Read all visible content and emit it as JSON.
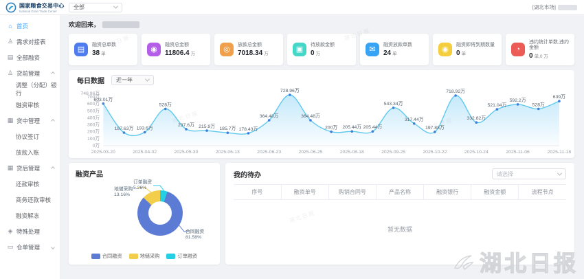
{
  "header": {
    "brand": {
      "title": "国家粮食交易中心",
      "subtitle": "National Grain Trade Center"
    },
    "market_select": "全部",
    "user_market": "[湖北市场]"
  },
  "sidebar": {
    "items": [
      {
        "label": "首页",
        "icon": "home-icon",
        "level": 0,
        "active": true
      },
      {
        "label": "需求对接表",
        "icon": "user-icon",
        "level": 0
      },
      {
        "label": "全部融资",
        "icon": "document-icon",
        "level": 0
      },
      {
        "label": "贷前管理",
        "icon": "user-icon",
        "level": 0,
        "caret": "up"
      },
      {
        "label": "调整（分配）银行",
        "level": 1
      },
      {
        "label": "融资审核",
        "level": 1
      },
      {
        "label": "贷中管理",
        "icon": "bank-icon",
        "level": 0,
        "caret": "up"
      },
      {
        "label": "协议签订",
        "level": 1
      },
      {
        "label": "放款入账",
        "level": 1
      },
      {
        "label": "贷后管理",
        "icon": "bank-icon",
        "level": 0,
        "caret": "up"
      },
      {
        "label": "还款审核",
        "level": 1
      },
      {
        "label": "商务还款审核",
        "level": 1
      },
      {
        "label": "融资解冻",
        "level": 1
      },
      {
        "label": "特殊处理",
        "icon": "pin-icon",
        "level": 0
      },
      {
        "label": "仓单管理",
        "icon": "folder-icon",
        "level": 0,
        "caret": "down"
      }
    ]
  },
  "main": {
    "welcome": "欢迎回来，",
    "stats": [
      {
        "title": "融资总单数",
        "value": "38",
        "unit": "单",
        "icon": "document-icon",
        "color": "#4e7cee"
      },
      {
        "title": "融资总金额",
        "value": "11806.4",
        "unit": "万",
        "icon": "coin-icon",
        "color": "#b35fe8"
      },
      {
        "title": "放款总金额",
        "value": "7018.34",
        "unit": "万",
        "icon": "money-icon",
        "color": "#f0a04b"
      },
      {
        "title": "待放款金额",
        "value": "0",
        "unit": "万",
        "icon": "wallet-icon",
        "color": "#44d7c8"
      },
      {
        "title": "融资放款单数",
        "value": "24",
        "unit": "单",
        "icon": "envelope-icon",
        "color": "#37a3f4"
      },
      {
        "title": "融资即将到期数量",
        "value": "0",
        "unit": "单",
        "icon": "coin-icon",
        "color": "#f5ce3e"
      },
      {
        "title": "违约统计单数,违约金额",
        "value": "0",
        "unit": "单,0 万",
        "icon": "clock-icon",
        "color": "#ec5b56"
      }
    ],
    "daily": {
      "title": "每日数据",
      "range": "近一年"
    },
    "products": {
      "title": "融资产品"
    },
    "todo": {
      "title": "我的待办",
      "filter_placeholder": "请选择",
      "columns": [
        "序号",
        "融资单号",
        "购销合同号",
        "产品名称",
        "融资银行",
        "融资金额",
        "流程节点"
      ],
      "empty": "暂无数据"
    }
  },
  "watermark": {
    "text": "湖北日报"
  },
  "chart_data": [
    {
      "type": "line",
      "title": "每日数据",
      "range": "近一年",
      "values": [
        603.01,
        187.63,
        193.6,
        528,
        237.6,
        215.9,
        185.7,
        178.43,
        364.48,
        728.96,
        364.48,
        200,
        205.44,
        205.44,
        543.34,
        317.44,
        197.88,
        718.92,
        332.82,
        521.04,
        592.2,
        528,
        639
      ],
      "xticks": [
        "2025-03-20",
        "2025-04-02",
        "2025-05-30",
        "2025-06-13",
        "2025-06-23",
        "2025-06-25",
        "2025-08-18",
        "2025-09-25",
        "2025-10-22",
        "2025-10-24",
        "2025-11-06",
        "2025-11-18"
      ],
      "xtick_every": 2,
      "unit": "万",
      "ymax": 748.96,
      "yticks": [
        0,
        100,
        200,
        300,
        400,
        500,
        600,
        700,
        748.96
      ],
      "line_color": "#5fc9ed",
      "point_color": "#3e7edb",
      "area_color": "#7dcdf5",
      "grid": false
    },
    {
      "type": "pie",
      "title": "融资产品",
      "series": [
        {
          "name": "合同融资",
          "percent": 81.58,
          "percent_label": "81.58%",
          "color": "#5b7bd5"
        },
        {
          "name": "地储采购",
          "percent": 13.16,
          "percent_label": "13.16%",
          "color": "#f3ce4b"
        },
        {
          "name": "订单融资",
          "percent": 5.26,
          "percent_label": "5.26%",
          "color": "#25cfe4"
        }
      ],
      "legend_position": "bottom"
    }
  ]
}
